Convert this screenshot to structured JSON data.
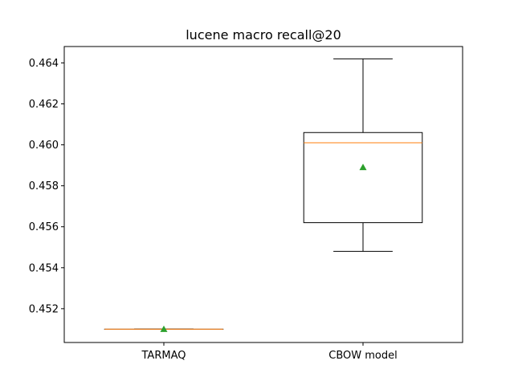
{
  "chart_data": {
    "type": "box",
    "title": "lucene macro recall@20",
    "xlabel": "",
    "ylabel": "",
    "ylim": [
      0.45035,
      0.4648
    ],
    "yticks": [
      "0.452",
      "0.454",
      "0.456",
      "0.458",
      "0.460",
      "0.462",
      "0.464"
    ],
    "ytick_values": [
      0.452,
      0.454,
      0.456,
      0.458,
      0.46,
      0.462,
      0.464
    ],
    "categories": [
      "TARMAQ",
      "CBOW model"
    ],
    "boxes": [
      {
        "name": "TARMAQ",
        "whisker_low": 0.451,
        "q1": 0.451,
        "median": 0.451,
        "q3": 0.451,
        "whisker_high": 0.451,
        "mean": 0.451
      },
      {
        "name": "CBOW model",
        "whisker_low": 0.4548,
        "q1": 0.4562,
        "median": 0.4601,
        "q3": 0.4606,
        "whisker_high": 0.4642,
        "mean": 0.4589
      }
    ],
    "grid": false,
    "colors": {
      "box": "#000000",
      "median": "#ff7f0e",
      "mean": "#2ca02c"
    }
  }
}
